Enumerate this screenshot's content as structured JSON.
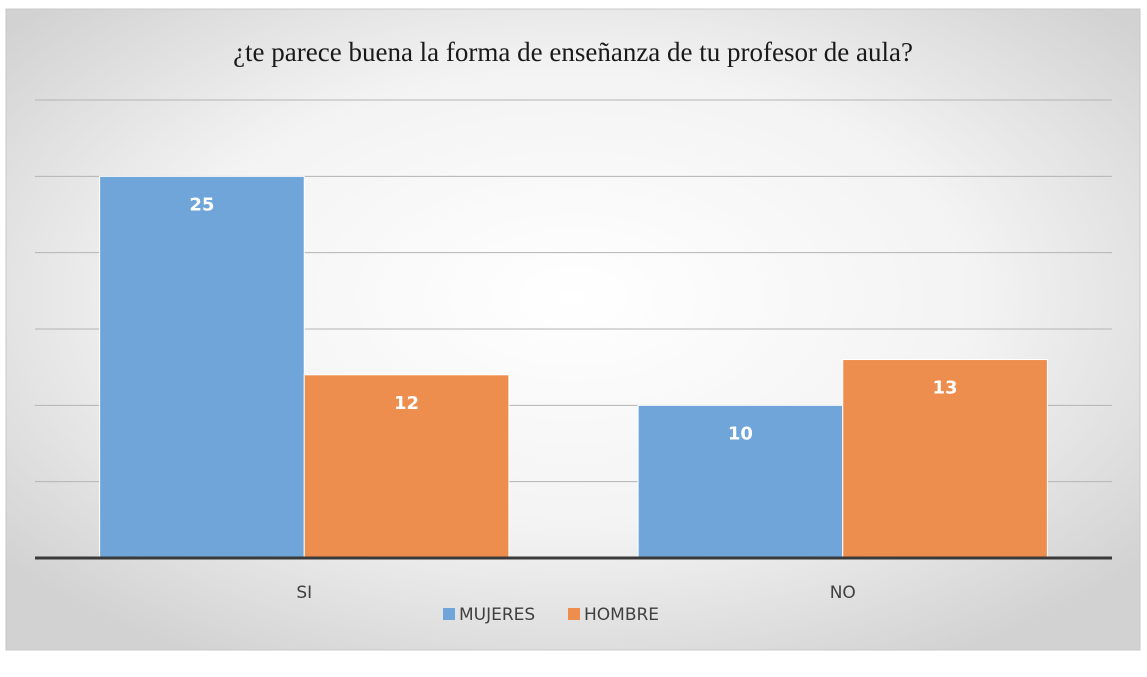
{
  "chart_data": {
    "type": "bar",
    "title": "¿te parece buena la forma de enseñanza de tu profesor de aula?",
    "categories": [
      "SI",
      "NO"
    ],
    "series": [
      {
        "name": "MUJERES",
        "color": "#6fa5d8",
        "values": [
          25,
          10
        ]
      },
      {
        "name": "HOMBRE",
        "color": "#ee8e4e",
        "values": [
          12,
          13
        ]
      }
    ],
    "ylim": [
      0,
      30
    ],
    "yticks": [
      0,
      5,
      10,
      15,
      20,
      25,
      30
    ],
    "grid": true,
    "legend": "bottom"
  }
}
